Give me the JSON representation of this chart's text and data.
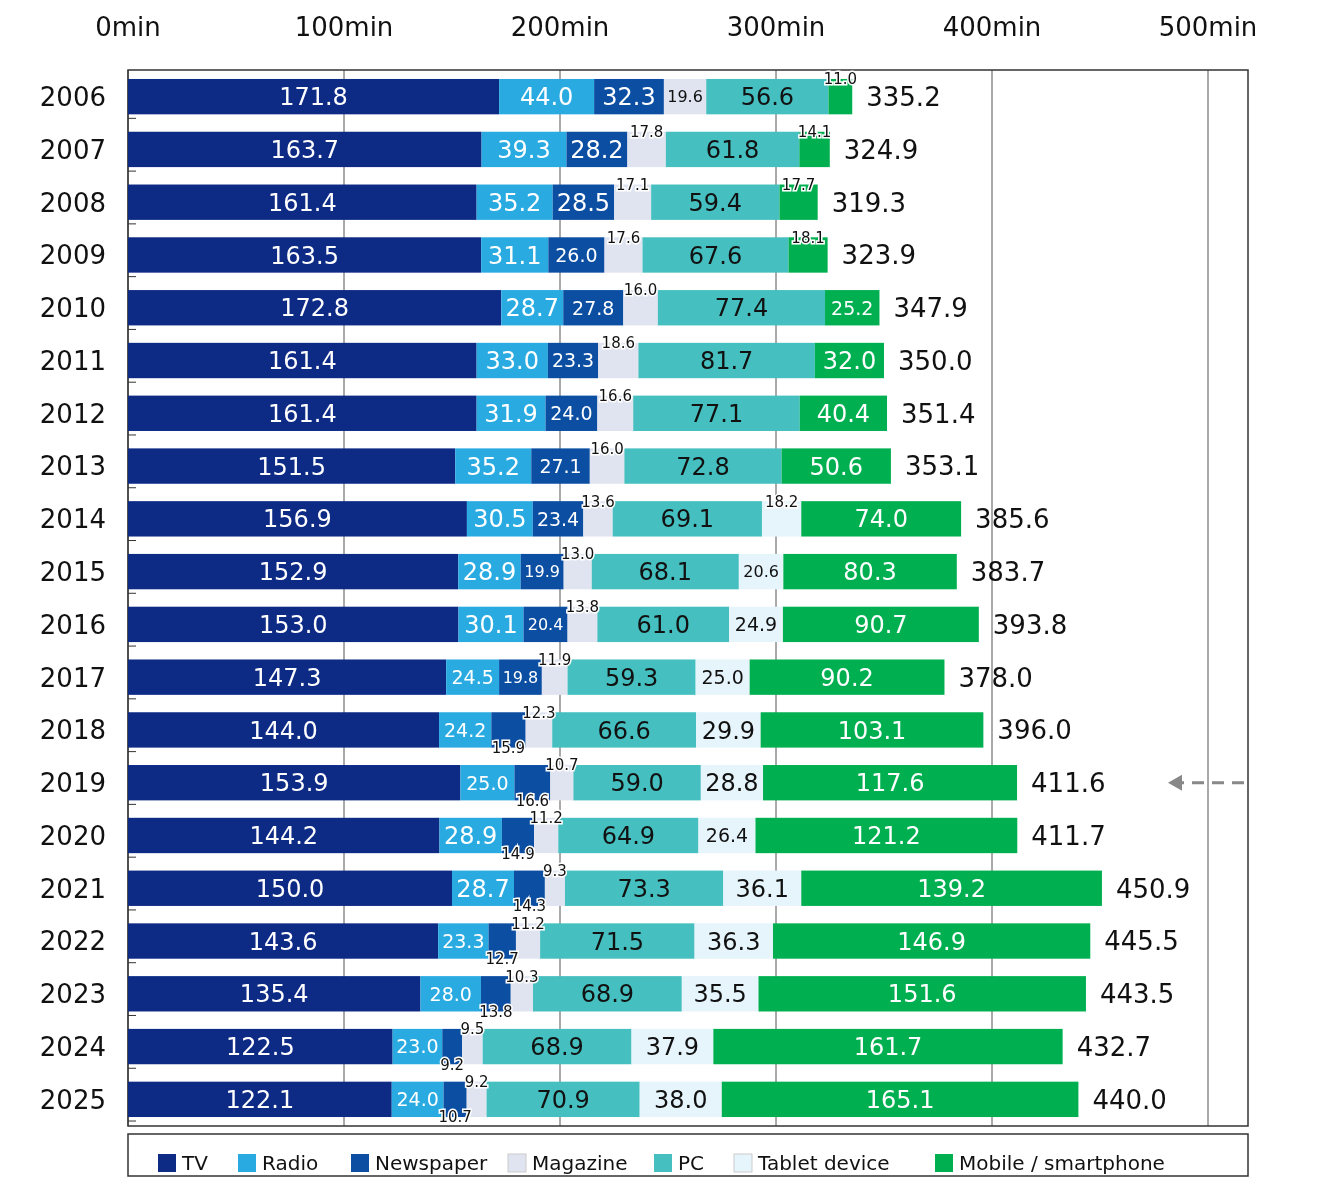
{
  "chart_data": {
    "type": "bar",
    "orientation": "horizontal",
    "stacked": true,
    "grid": "x",
    "legend": "bottom",
    "categories": [
      "2006",
      "2007",
      "2008",
      "2009",
      "2010",
      "2011",
      "2012",
      "2013",
      "2014",
      "2015",
      "2016",
      "2017",
      "2018",
      "2019",
      "2020",
      "2021",
      "2022",
      "2023",
      "2024",
      "2025"
    ],
    "xlim": [
      0,
      500
    ],
    "xticks": [
      {
        "value": 0,
        "label": "0min"
      },
      {
        "value": 100,
        "label": "100min"
      },
      {
        "value": 200,
        "label": "200min"
      },
      {
        "value": 300,
        "label": "300min"
      },
      {
        "value": 400,
        "label": "400min"
      },
      {
        "value": 500,
        "label": "500min"
      }
    ],
    "series": [
      {
        "name": "TV",
        "color": "#0d2a85",
        "values": [
          171.8,
          163.7,
          161.4,
          163.5,
          172.8,
          161.4,
          161.4,
          151.5,
          156.9,
          152.9,
          153.0,
          147.3,
          144.0,
          153.9,
          144.2,
          150.0,
          143.6,
          135.4,
          122.5,
          122.1
        ],
        "value_labels": [
          "171.8",
          "163.7",
          "161.4",
          "163.5",
          "172.8",
          "161.4",
          "161.4",
          "151.5",
          "156.9",
          "152.9",
          "153.0",
          "147.3",
          "144.0",
          "153.9",
          "144.2",
          "150.0",
          "143.6",
          "135.4",
          "122.5",
          "122.1"
        ]
      },
      {
        "name": "Radio",
        "color": "#29abe2",
        "values": [
          44.0,
          39.3,
          35.2,
          31.1,
          28.7,
          33.0,
          31.9,
          35.2,
          30.5,
          28.9,
          30.1,
          24.5,
          24.2,
          25.0,
          28.9,
          28.7,
          23.3,
          28.0,
          23.0,
          24.0
        ],
        "value_labels": [
          "44.0",
          "39.3",
          "35.2",
          "31.1",
          "28.7",
          "33.0",
          "31.9",
          "35.2",
          "30.5",
          "28.9",
          "30.1",
          "24.5",
          "24.2",
          "25.0",
          "28.9",
          "28.7",
          "23.3",
          "28.0",
          "23.0",
          "24.0"
        ]
      },
      {
        "name": "Newspaper",
        "color": "#0b4ea2",
        "values": [
          32.3,
          28.2,
          28.5,
          26.0,
          27.8,
          23.3,
          24.0,
          27.1,
          23.4,
          19.9,
          20.4,
          19.8,
          15.9,
          16.6,
          14.9,
          14.3,
          12.7,
          13.8,
          9.2,
          10.7
        ],
        "value_labels": [
          "32.3",
          "28.2",
          "28.5",
          "26.0",
          "27.8",
          "23.3",
          "24.0",
          "27.1",
          "23.4",
          "19.9",
          "20.4",
          "19.8",
          "15.9",
          "16.6",
          "14.9",
          "14.3",
          "12.7",
          "13.8",
          "9.2",
          "10.7"
        ]
      },
      {
        "name": "Magazine",
        "color": "#dfe4f0",
        "values": [
          19.6,
          17.8,
          17.1,
          17.6,
          16.0,
          18.6,
          16.6,
          16.0,
          13.6,
          13.0,
          13.8,
          11.9,
          12.3,
          10.7,
          11.2,
          9.3,
          11.2,
          10.3,
          9.5,
          9.2
        ],
        "value_labels": [
          "19.6",
          "17.8",
          "17.1",
          "17.6",
          "16.0",
          "18.6",
          "16.6",
          "16.0",
          "13.6",
          "13.0",
          "13.8",
          "11.9",
          "12.3",
          "10.7",
          "11.2",
          "9.3",
          "11.2",
          "10.3",
          "9.5",
          "9.2"
        ]
      },
      {
        "name": "PC",
        "color": "#45bfbf",
        "values": [
          56.6,
          61.8,
          59.4,
          67.6,
          77.4,
          81.7,
          77.1,
          72.8,
          69.1,
          68.1,
          61.0,
          59.3,
          66.6,
          59.0,
          64.9,
          73.3,
          71.5,
          68.9,
          68.9,
          70.9
        ],
        "value_labels": [
          "56.6",
          "61.8",
          "59.4",
          "67.6",
          "77.4",
          "81.7",
          "77.1",
          "72.8",
          "69.1",
          "68.1",
          "61.0",
          "59.3",
          "66.6",
          "59.0",
          "64.9",
          "73.3",
          "71.5",
          "68.9",
          "68.9",
          "70.9"
        ]
      },
      {
        "name": "Tablet device",
        "color": "#e6f4fb",
        "values": [
          null,
          null,
          null,
          null,
          null,
          null,
          null,
          null,
          18.2,
          20.6,
          24.9,
          25.0,
          29.9,
          28.8,
          26.4,
          36.1,
          36.3,
          35.5,
          37.9,
          38.0
        ],
        "value_labels": [
          null,
          null,
          null,
          null,
          null,
          null,
          null,
          null,
          "18.2",
          "20.6",
          "24.9",
          "25.0",
          "29.9",
          "28.8",
          "26.4",
          "36.1",
          "36.3",
          "35.5",
          "37.9",
          "38.0"
        ]
      },
      {
        "name": "Mobile / smartphone",
        "color": "#00b050",
        "values": [
          11.0,
          14.1,
          17.7,
          18.1,
          25.2,
          32.0,
          40.4,
          50.6,
          74.0,
          80.3,
          90.7,
          90.2,
          103.1,
          117.6,
          121.2,
          139.2,
          146.9,
          151.6,
          161.7,
          165.1
        ],
        "value_labels": [
          "11.0",
          "14.1",
          "17.7",
          "18.1",
          "25.2",
          "32.0",
          "40.4",
          "50.6",
          "74.0",
          "80.3",
          "90.7",
          "90.2",
          "103.1",
          "117.6",
          "121.2",
          "139.2",
          "146.9",
          "151.6",
          "161.7",
          "165.1"
        ]
      }
    ],
    "totals": [
      "335.2",
      "324.9",
      "319.3",
      "323.9",
      "347.9",
      "350.0",
      "351.4",
      "353.1",
      "385.6",
      "383.7",
      "393.8",
      "378.0",
      "396.0",
      "411.6",
      "411.7",
      "450.9",
      "445.5",
      "443.5",
      "432.7",
      "440.0"
    ]
  }
}
